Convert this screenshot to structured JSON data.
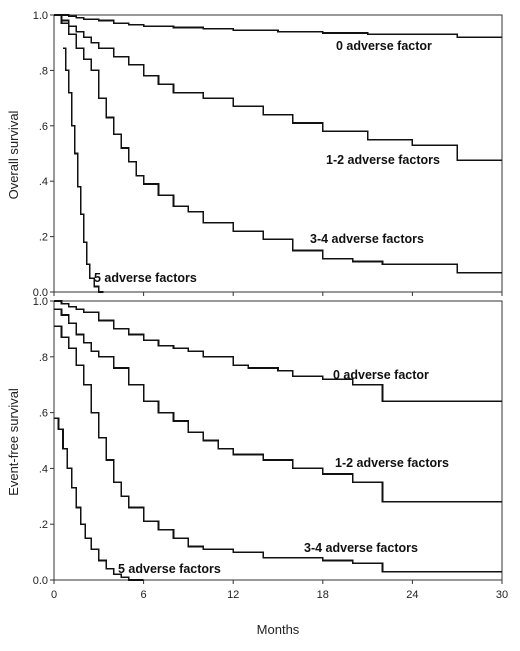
{
  "chart_data": [
    {
      "type": "line",
      "panel": "top",
      "title": "",
      "xlabel": "",
      "ylabel": "Overall survival",
      "xlim": [
        0,
        30
      ],
      "ylim": [
        0,
        1
      ],
      "yticks": [
        "0.0",
        ".2",
        ".4",
        ".6",
        ".8",
        "1.0"
      ],
      "xticks": [],
      "grid": false,
      "legend": "none",
      "series": [
        {
          "name": "0 adverse factor",
          "x": [
            0,
            0.5,
            1,
            1.5,
            2,
            3,
            4,
            5,
            6,
            8,
            10,
            12,
            15,
            18,
            21,
            24,
            27,
            30
          ],
          "y": [
            1.0,
            1.0,
            0.995,
            0.99,
            0.985,
            0.98,
            0.97,
            0.965,
            0.96,
            0.955,
            0.95,
            0.945,
            0.94,
            0.935,
            0.93,
            0.93,
            0.92,
            0.92
          ]
        },
        {
          "name": "1-2 adverse factors",
          "x": [
            0,
            0.5,
            1,
            1.5,
            2,
            2.5,
            3,
            4,
            5,
            6,
            7,
            8,
            10,
            12,
            14,
            16,
            18,
            21,
            24,
            27,
            30
          ],
          "y": [
            1.0,
            0.98,
            0.96,
            0.94,
            0.92,
            0.9,
            0.88,
            0.85,
            0.82,
            0.78,
            0.75,
            0.72,
            0.7,
            0.67,
            0.64,
            0.61,
            0.58,
            0.55,
            0.53,
            0.475,
            0.475
          ]
        },
        {
          "name": "3-4 adverse factors",
          "x": [
            0,
            0.5,
            1,
            1.5,
            2,
            2.5,
            3,
            3.5,
            4,
            4.5,
            5,
            5.5,
            6,
            7,
            8,
            9,
            10,
            12,
            14,
            16,
            18,
            20,
            22,
            24,
            27,
            30
          ],
          "y": [
            1.0,
            0.97,
            0.93,
            0.88,
            0.84,
            0.8,
            0.7,
            0.63,
            0.57,
            0.52,
            0.47,
            0.42,
            0.39,
            0.35,
            0.31,
            0.29,
            0.25,
            0.22,
            0.19,
            0.15,
            0.12,
            0.11,
            0.1,
            0.1,
            0.07,
            0.07
          ]
        },
        {
          "name": "5 adverse factors",
          "x": [
            0.6,
            0.8,
            1.0,
            1.2,
            1.4,
            1.6,
            1.8,
            2.0,
            2.2,
            2.4,
            2.7,
            3.0,
            3.3
          ],
          "y": [
            0.88,
            0.8,
            0.72,
            0.6,
            0.5,
            0.38,
            0.28,
            0.18,
            0.1,
            0.05,
            0.02,
            0.0,
            0.0
          ]
        }
      ],
      "annotations": [
        "0 adverse factor",
        "1-2 adverse factors",
        "3-4 adverse factors",
        "5 adverse factors"
      ]
    },
    {
      "type": "line",
      "panel": "bottom",
      "title": "",
      "xlabel": "Months",
      "ylabel": "Event-free survival",
      "xlim": [
        0,
        30
      ],
      "ylim": [
        0,
        1
      ],
      "yticks": [
        "0.0",
        ".2",
        ".4",
        ".6",
        ".8",
        "1.0"
      ],
      "xticks": [
        "0",
        "6",
        "12",
        "18",
        "24",
        "30"
      ],
      "grid": false,
      "legend": "none",
      "series": [
        {
          "name": "0 adverse factor",
          "x": [
            0,
            0.5,
            1,
            1.5,
            2,
            3,
            4,
            5,
            6,
            7,
            8,
            9,
            10,
            12,
            13,
            15,
            16,
            18,
            20,
            22,
            24,
            27,
            30
          ],
          "y": [
            1.0,
            0.99,
            0.98,
            0.97,
            0.96,
            0.93,
            0.9,
            0.88,
            0.86,
            0.84,
            0.83,
            0.82,
            0.8,
            0.77,
            0.76,
            0.75,
            0.73,
            0.72,
            0.7,
            0.64,
            0.64,
            0.64,
            0.64
          ]
        },
        {
          "name": "1-2 adverse factors",
          "x": [
            0,
            0.5,
            1,
            1.5,
            2,
            2.5,
            3,
            4,
            5,
            6,
            7,
            8,
            9,
            10,
            11,
            12,
            14,
            16,
            18,
            20,
            22,
            24,
            27,
            30
          ],
          "y": [
            0.97,
            0.95,
            0.92,
            0.88,
            0.85,
            0.82,
            0.8,
            0.76,
            0.7,
            0.64,
            0.6,
            0.57,
            0.53,
            0.5,
            0.47,
            0.45,
            0.43,
            0.4,
            0.38,
            0.35,
            0.28,
            0.28,
            0.28,
            0.28
          ]
        },
        {
          "name": "3-4 adverse factors",
          "x": [
            0,
            0.5,
            1,
            1.5,
            2,
            2.5,
            3,
            3.5,
            4,
            4.5,
            5,
            6,
            7,
            8,
            9,
            10,
            12,
            14,
            16,
            18,
            20,
            22,
            24,
            27,
            30
          ],
          "y": [
            0.91,
            0.87,
            0.83,
            0.77,
            0.7,
            0.6,
            0.51,
            0.43,
            0.35,
            0.3,
            0.26,
            0.21,
            0.18,
            0.15,
            0.12,
            0.11,
            0.1,
            0.08,
            0.08,
            0.07,
            0.06,
            0.03,
            0.03,
            0.03,
            0.03
          ]
        },
        {
          "name": "5 adverse factors",
          "x": [
            0,
            0.3,
            0.6,
            0.9,
            1.2,
            1.5,
            1.8,
            2.1,
            2.5,
            3,
            3.5,
            4,
            4.5,
            5,
            6
          ],
          "y": [
            0.58,
            0.54,
            0.47,
            0.4,
            0.33,
            0.26,
            0.2,
            0.15,
            0.11,
            0.07,
            0.04,
            0.02,
            0.01,
            0.0,
            0.0
          ]
        }
      ],
      "annotations": [
        "0 adverse factor",
        "1-2 adverse factors",
        "3-4 adverse factors",
        "5 adverse factors"
      ]
    }
  ]
}
